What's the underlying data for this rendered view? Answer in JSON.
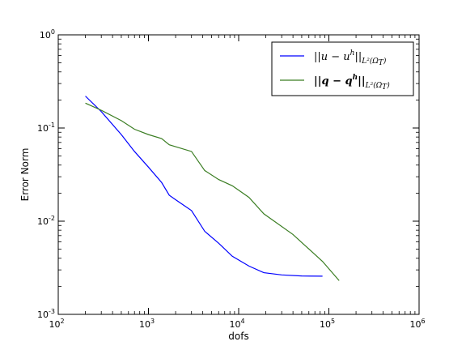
{
  "chart_data": {
    "type": "line",
    "xscale": "log",
    "yscale": "log",
    "xlabel": "dofs",
    "ylabel": "Error Norm",
    "xlim": [
      100,
      1000000
    ],
    "ylim": [
      0.001,
      1
    ],
    "grid": false,
    "legend_position": "top-right",
    "x_ticks": [
      {
        "value": 100,
        "base": "10",
        "exp": "2"
      },
      {
        "value": 1000,
        "base": "10",
        "exp": "3"
      },
      {
        "value": 10000,
        "base": "10",
        "exp": "4"
      },
      {
        "value": 100000,
        "base": "10",
        "exp": "5"
      },
      {
        "value": 1000000,
        "base": "10",
        "exp": "6"
      }
    ],
    "y_ticks": [
      {
        "value": 0.001,
        "base": "10",
        "exp": "-3"
      },
      {
        "value": 0.01,
        "base": "10",
        "exp": "-2"
      },
      {
        "value": 0.1,
        "base": "10",
        "exp": "-1"
      },
      {
        "value": 1,
        "base": "10",
        "exp": "0"
      }
    ],
    "series": [
      {
        "name": "||u − u^h||_{L²(Ω_T)}",
        "legend_main": "||u − u",
        "legend_sup": "h",
        "legend_tail": "||",
        "legend_sub": "L²(Ω",
        "legend_subsub": "T",
        "legend_subclose": ")",
        "color": "#0000ff",
        "points": [
          [
            200,
            0.22
          ],
          [
            300,
            0.15
          ],
          [
            500,
            0.085
          ],
          [
            700,
            0.056
          ],
          [
            1000,
            0.038
          ],
          [
            1400,
            0.026
          ],
          [
            1700,
            0.019
          ],
          [
            2000,
            0.017
          ],
          [
            3000,
            0.013
          ],
          [
            4200,
            0.0078
          ],
          [
            6000,
            0.0058
          ],
          [
            8500,
            0.0042
          ],
          [
            13000,
            0.0033
          ],
          [
            19000,
            0.0028
          ],
          [
            30000,
            0.00265
          ],
          [
            50000,
            0.00258
          ],
          [
            85000,
            0.00257
          ]
        ]
      },
      {
        "name": "||q − q^h||_{L²(Ω_T)}",
        "legend_main": "||q − q",
        "legend_sup": "h",
        "legend_tail": "||",
        "legend_sub": "L²(Ω",
        "legend_subsub": "T",
        "legend_subclose": ")",
        "color": "#3a7d22",
        "points": [
          [
            200,
            0.185
          ],
          [
            300,
            0.155
          ],
          [
            500,
            0.12
          ],
          [
            700,
            0.097
          ],
          [
            1000,
            0.085
          ],
          [
            1400,
            0.077
          ],
          [
            1700,
            0.066
          ],
          [
            2000,
            0.063
          ],
          [
            3000,
            0.056
          ],
          [
            4200,
            0.035
          ],
          [
            6000,
            0.028
          ],
          [
            8500,
            0.024
          ],
          [
            13000,
            0.018
          ],
          [
            19000,
            0.012
          ],
          [
            40000,
            0.0072
          ],
          [
            85000,
            0.0037
          ],
          [
            130000,
            0.0023
          ]
        ]
      }
    ]
  }
}
